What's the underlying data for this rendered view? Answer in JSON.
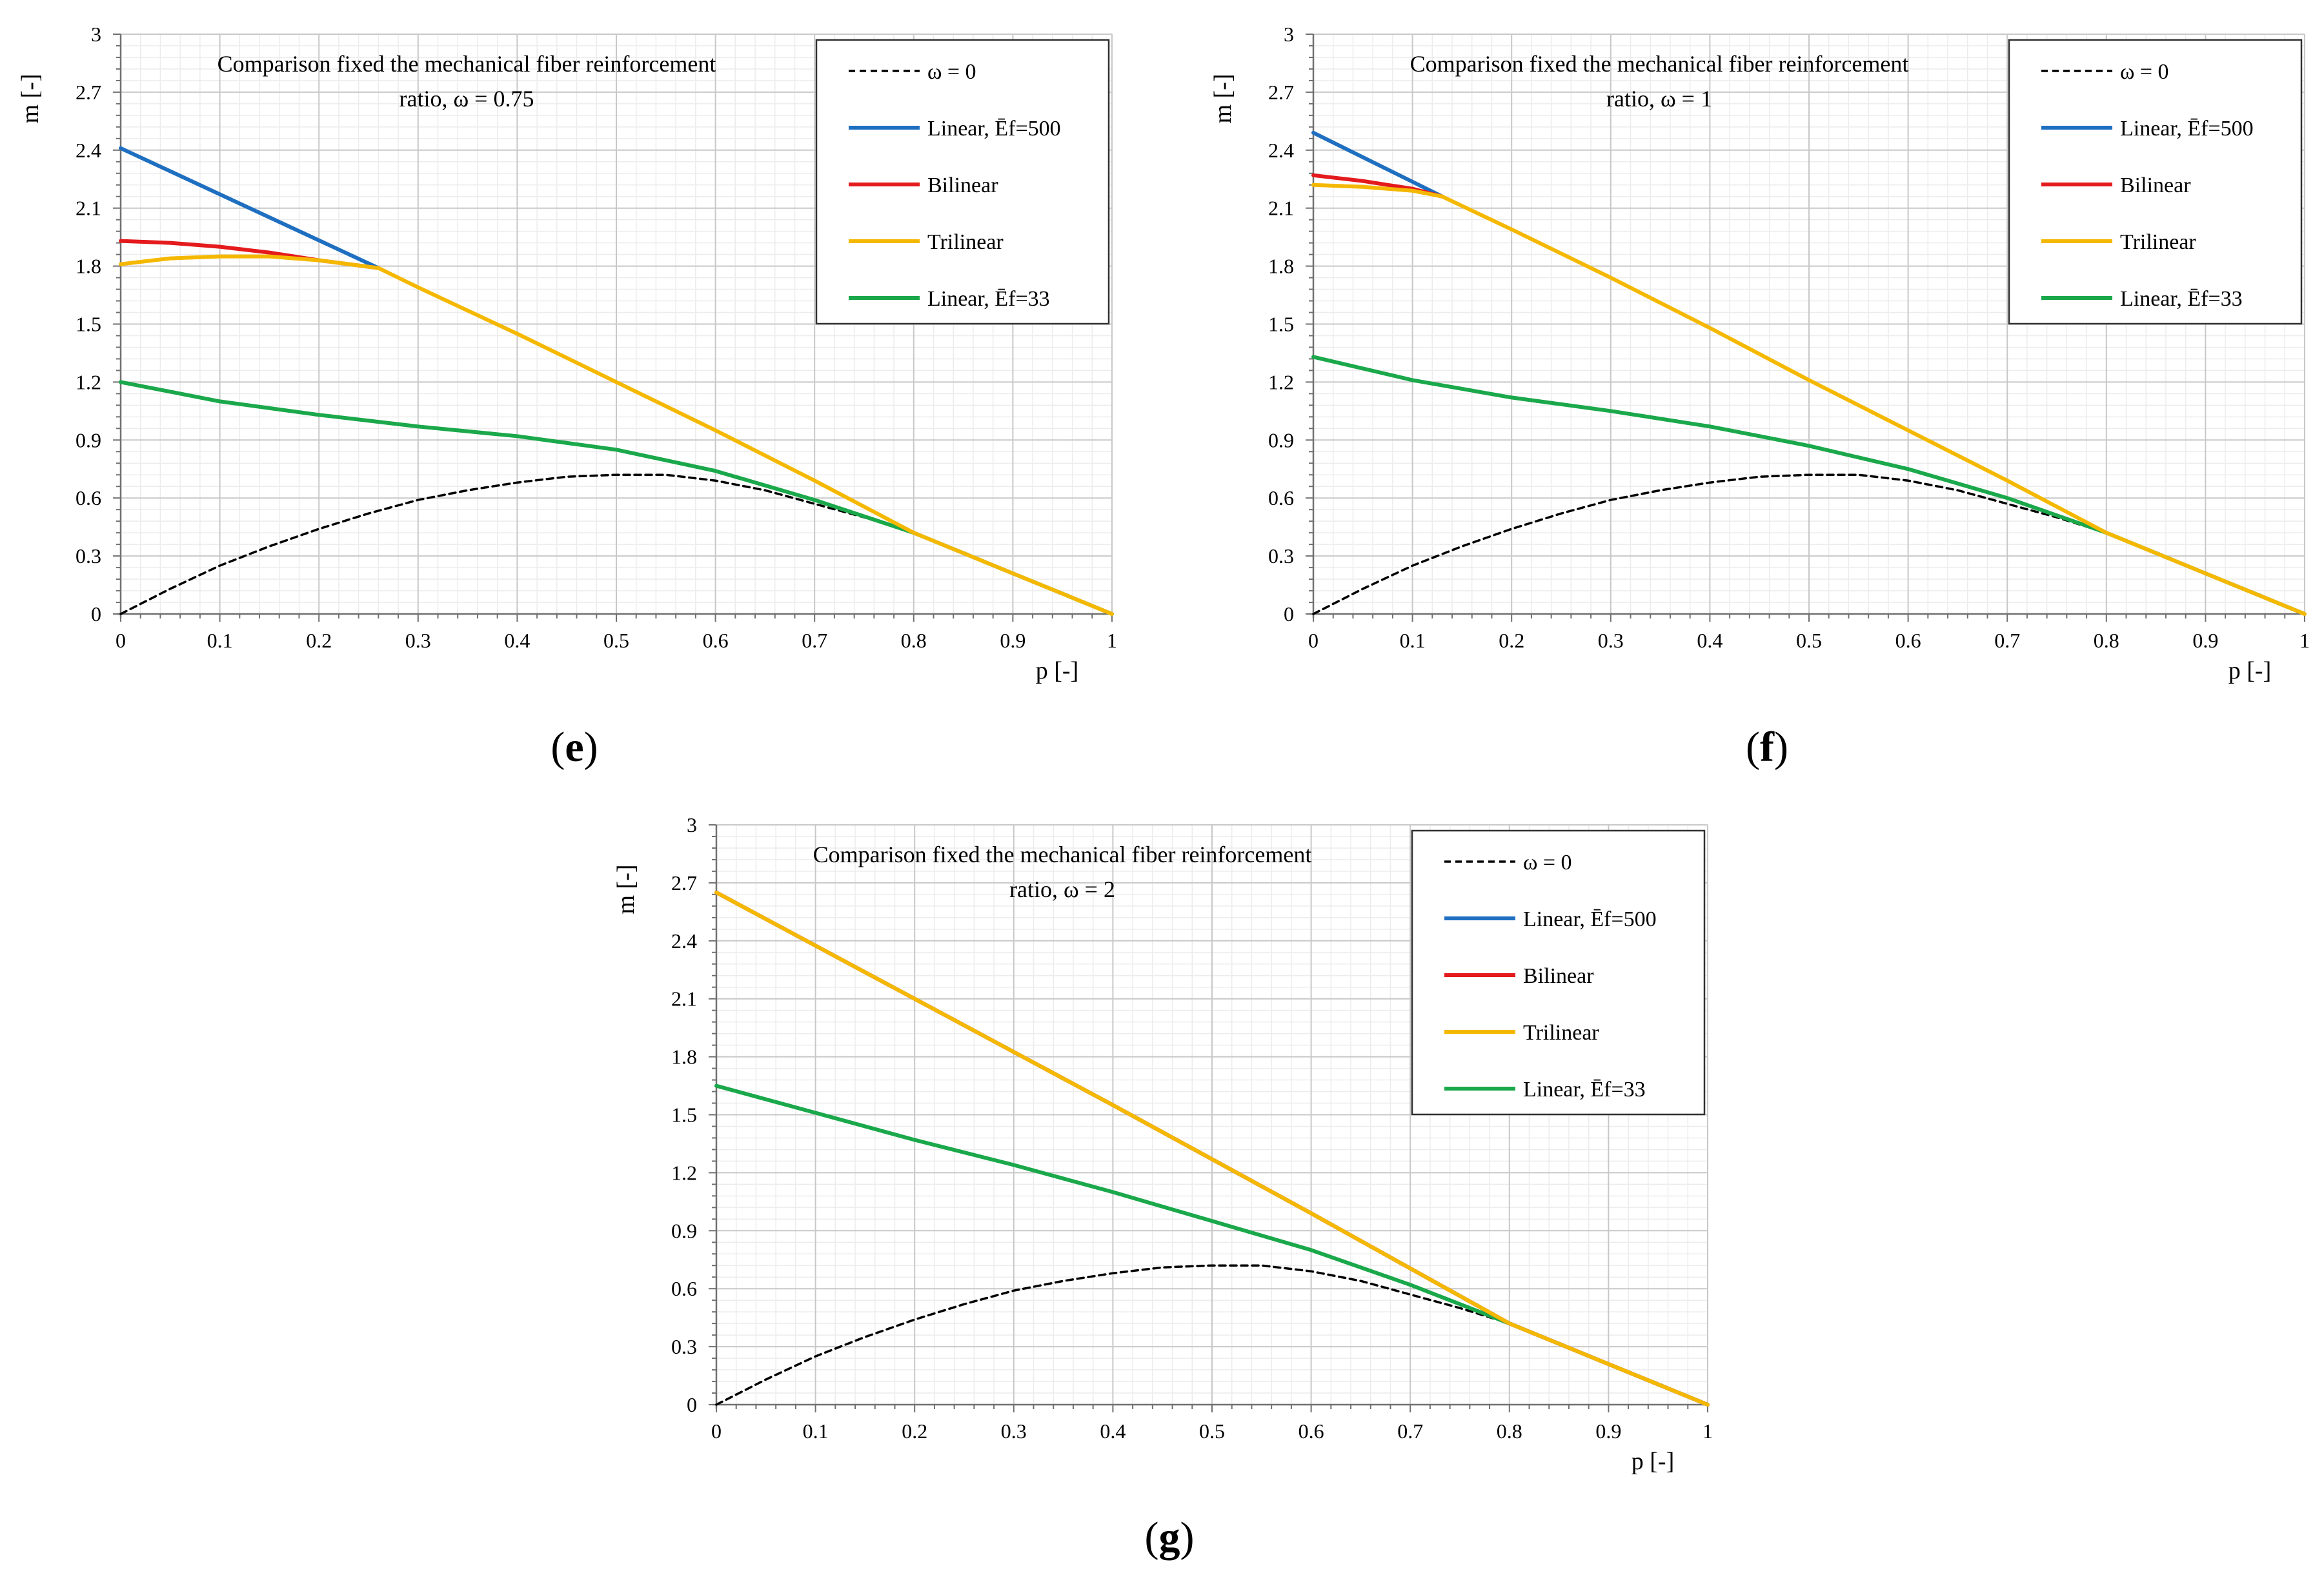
{
  "chart_data": [
    {
      "panel": "e",
      "type": "line",
      "title_lines": [
        "Comparison fixed the mechanical fiber reinforcement",
        "ratio, ω = 0.75"
      ],
      "xlabel": "p [-]",
      "ylabel": "m [-]",
      "xlim": [
        0,
        1
      ],
      "ylim": [
        0,
        3
      ],
      "xticks": [
        "0",
        "0.1",
        "0.2",
        "0.3",
        "0.4",
        "0.5",
        "0.6",
        "0.7",
        "0.8",
        "0.9",
        "1"
      ],
      "yticks": [
        "0",
        "0.3",
        "0.6",
        "0.9",
        "1.2",
        "1.5",
        "1.8",
        "2.1",
        "2.4",
        "2.7",
        "3"
      ],
      "grid": true,
      "legend_position": "top-right",
      "series": [
        {
          "name": "ω = 0",
          "color": "#000000",
          "style": "dashed",
          "x": [
            0,
            0.05,
            0.1,
            0.15,
            0.2,
            0.25,
            0.3,
            0.35,
            0.4,
            0.45,
            0.5,
            0.55,
            0.6,
            0.65,
            0.7,
            0.75,
            0.8,
            0.85,
            0.9,
            0.95,
            1
          ],
          "y": [
            0,
            0.13,
            0.25,
            0.35,
            0.44,
            0.52,
            0.59,
            0.64,
            0.68,
            0.71,
            0.72,
            0.72,
            0.69,
            0.64,
            0.57,
            0.5,
            0.42,
            0.32,
            0.21,
            0.11,
            0
          ]
        },
        {
          "name": "Linear, Ēf=500",
          "color": "#1f6fc1",
          "style": "solid",
          "x": [
            0,
            0.26
          ],
          "y": [
            2.41,
            1.79
          ]
        },
        {
          "name": "Bilinear",
          "color": "#e41a1c",
          "style": "solid",
          "x": [
            0,
            0.05,
            0.1,
            0.15,
            0.2,
            0.26
          ],
          "y": [
            1.93,
            1.92,
            1.9,
            1.87,
            1.83,
            1.79
          ]
        },
        {
          "name": "Trilinear",
          "color": "#f5b800",
          "style": "solid",
          "x": [
            0,
            0.05,
            0.1,
            0.15,
            0.2,
            0.26,
            0.3,
            0.4,
            0.5,
            0.6,
            0.7,
            0.8,
            0.9,
            1
          ],
          "y": [
            1.81,
            1.84,
            1.85,
            1.85,
            1.83,
            1.79,
            1.69,
            1.45,
            1.2,
            0.95,
            0.69,
            0.42,
            0.21,
            0
          ]
        },
        {
          "name": "Linear, Ēf=33",
          "color": "#1aa84b",
          "style": "solid",
          "x": [
            0,
            0.1,
            0.2,
            0.3,
            0.4,
            0.5,
            0.6,
            0.7,
            0.8,
            0.9,
            1
          ],
          "y": [
            1.2,
            1.1,
            1.03,
            0.97,
            0.92,
            0.85,
            0.74,
            0.59,
            0.42,
            0.21,
            0
          ]
        }
      ]
    },
    {
      "panel": "f",
      "type": "line",
      "title_lines": [
        "Comparison fixed the mechanical fiber reinforcement",
        "ratio, ω = 1"
      ],
      "xlabel": "p [-]",
      "ylabel": "m [-]",
      "xlim": [
        0,
        1
      ],
      "ylim": [
        0,
        3
      ],
      "xticks": [
        "0",
        "0.1",
        "0.2",
        "0.3",
        "0.4",
        "0.5",
        "0.6",
        "0.7",
        "0.8",
        "0.9",
        "1"
      ],
      "yticks": [
        "0",
        "0.3",
        "0.6",
        "0.9",
        "1.2",
        "1.5",
        "1.8",
        "2.1",
        "2.4",
        "2.7",
        "3"
      ],
      "grid": true,
      "legend_position": "top-right",
      "series": [
        {
          "name": "ω = 0",
          "color": "#000000",
          "style": "dashed",
          "x": [
            0,
            0.05,
            0.1,
            0.15,
            0.2,
            0.25,
            0.3,
            0.35,
            0.4,
            0.45,
            0.5,
            0.55,
            0.6,
            0.65,
            0.7,
            0.75,
            0.8,
            0.85,
            0.9,
            0.95,
            1
          ],
          "y": [
            0,
            0.13,
            0.25,
            0.35,
            0.44,
            0.52,
            0.59,
            0.64,
            0.68,
            0.71,
            0.72,
            0.72,
            0.69,
            0.64,
            0.57,
            0.5,
            0.42,
            0.32,
            0.21,
            0.11,
            0
          ]
        },
        {
          "name": "Linear, Ēf=500",
          "color": "#1f6fc1",
          "style": "solid",
          "x": [
            0,
            0.13
          ],
          "y": [
            2.49,
            2.16
          ]
        },
        {
          "name": "Bilinear",
          "color": "#e41a1c",
          "style": "solid",
          "x": [
            0,
            0.05,
            0.1,
            0.13
          ],
          "y": [
            2.27,
            2.24,
            2.2,
            2.16
          ]
        },
        {
          "name": "Trilinear",
          "color": "#f5b800",
          "style": "solid",
          "x": [
            0,
            0.05,
            0.1,
            0.13,
            0.2,
            0.3,
            0.4,
            0.5,
            0.6,
            0.7,
            0.8,
            0.9,
            1
          ],
          "y": [
            2.22,
            2.21,
            2.19,
            2.16,
            1.99,
            1.74,
            1.48,
            1.21,
            0.95,
            0.69,
            0.42,
            0.21,
            0
          ]
        },
        {
          "name": "Linear, Ēf=33",
          "color": "#1aa84b",
          "style": "solid",
          "x": [
            0,
            0.1,
            0.2,
            0.3,
            0.4,
            0.5,
            0.6,
            0.7,
            0.8,
            0.9,
            1
          ],
          "y": [
            1.33,
            1.21,
            1.12,
            1.05,
            0.97,
            0.87,
            0.75,
            0.6,
            0.42,
            0.21,
            0
          ]
        }
      ]
    },
    {
      "panel": "g",
      "type": "line",
      "title_lines": [
        "Comparison fixed the mechanical fiber reinforcement",
        "ratio, ω = 2"
      ],
      "xlabel": "p [-]",
      "ylabel": "m [-]",
      "xlim": [
        0,
        1
      ],
      "ylim": [
        0,
        3
      ],
      "xticks": [
        "0",
        "0.1",
        "0.2",
        "0.3",
        "0.4",
        "0.5",
        "0.6",
        "0.7",
        "0.8",
        "0.9",
        "1"
      ],
      "yticks": [
        "0",
        "0.3",
        "0.6",
        "0.9",
        "1.2",
        "1.5",
        "1.8",
        "2.1",
        "2.4",
        "2.7",
        "3"
      ],
      "grid": true,
      "legend_position": "top-right",
      "series": [
        {
          "name": "ω = 0",
          "color": "#000000",
          "style": "dashed",
          "x": [
            0,
            0.05,
            0.1,
            0.15,
            0.2,
            0.25,
            0.3,
            0.35,
            0.4,
            0.45,
            0.5,
            0.55,
            0.6,
            0.65,
            0.7,
            0.75,
            0.8,
            0.85,
            0.9,
            0.95,
            1
          ],
          "y": [
            0,
            0.13,
            0.25,
            0.35,
            0.44,
            0.52,
            0.59,
            0.64,
            0.68,
            0.71,
            0.72,
            0.72,
            0.69,
            0.64,
            0.57,
            0.5,
            0.42,
            0.32,
            0.21,
            0.11,
            0
          ]
        },
        {
          "name": "Linear, Ēf=500",
          "color": "#1f6fc1",
          "style": "solid",
          "x": [
            0,
            0.2,
            0.4,
            0.6,
            0.8,
            0.9,
            1
          ],
          "y": [
            2.65,
            2.1,
            1.55,
            0.99,
            0.42,
            0.21,
            0
          ]
        },
        {
          "name": "Bilinear",
          "color": "#e41a1c",
          "style": "solid",
          "x": [
            0,
            0.2,
            0.4,
            0.6,
            0.8,
            0.9,
            1
          ],
          "y": [
            2.65,
            2.1,
            1.55,
            0.99,
            0.42,
            0.21,
            0
          ]
        },
        {
          "name": "Trilinear",
          "color": "#f5b800",
          "style": "solid",
          "x": [
            0,
            0.2,
            0.4,
            0.6,
            0.8,
            0.9,
            1
          ],
          "y": [
            2.65,
            2.1,
            1.55,
            0.99,
            0.42,
            0.21,
            0
          ]
        },
        {
          "name": "Linear, Ēf=33",
          "color": "#1aa84b",
          "style": "solid",
          "x": [
            0,
            0.1,
            0.2,
            0.3,
            0.4,
            0.5,
            0.6,
            0.7,
            0.8,
            0.9,
            1
          ],
          "y": [
            1.65,
            1.51,
            1.37,
            1.24,
            1.1,
            0.95,
            0.8,
            0.62,
            0.42,
            0.21,
            0
          ]
        }
      ]
    }
  ],
  "panel_labels": [
    "e",
    "f",
    "g"
  ]
}
